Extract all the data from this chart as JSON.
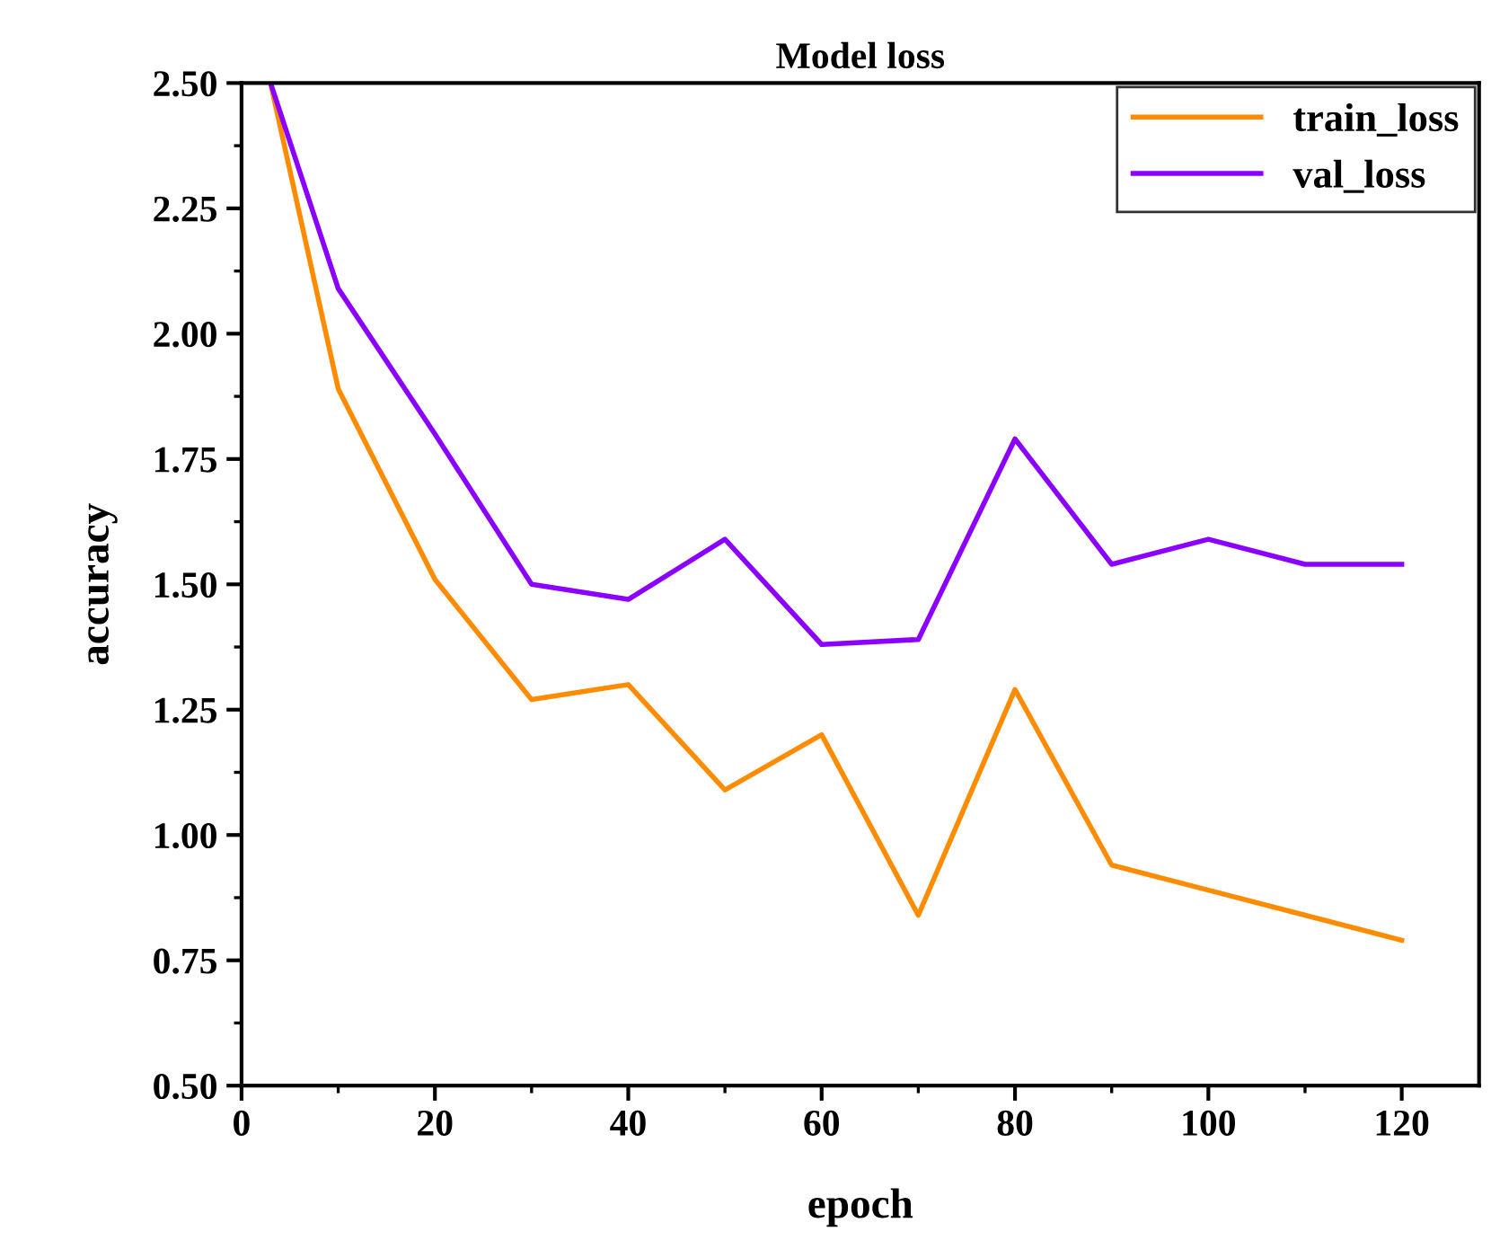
{
  "chart_data": {
    "type": "line",
    "title": "Model loss",
    "xlabel": "epoch",
    "ylabel": "accuracy",
    "x": [
      3,
      10,
      20,
      30,
      40,
      50,
      60,
      70,
      80,
      90,
      100,
      110,
      120
    ],
    "series": [
      {
        "name": "train_loss",
        "color": "#ff8c00",
        "values": [
          2.5,
          1.89,
          1.51,
          1.27,
          1.3,
          1.09,
          1.2,
          0.84,
          1.29,
          0.94,
          0.89,
          0.84,
          0.79
        ]
      },
      {
        "name": "val_loss",
        "color": "#8b00ff",
        "values": [
          2.5,
          2.09,
          1.8,
          1.5,
          1.47,
          1.59,
          1.38,
          1.39,
          1.79,
          1.54,
          1.59,
          1.54,
          1.54
        ]
      }
    ],
    "xlim": [
      0,
      128
    ],
    "xticks": [
      0,
      20,
      40,
      60,
      80,
      100,
      120
    ],
    "ylim": [
      0.5,
      2.5
    ],
    "yticks": [
      {
        "value": 0.5,
        "label": "0.50"
      },
      {
        "value": 0.75,
        "label": "0.75"
      },
      {
        "value": 1.0,
        "label": "1.00"
      },
      {
        "value": 1.25,
        "label": "1.25"
      },
      {
        "value": 1.5,
        "label": "1.50"
      },
      {
        "value": 1.75,
        "label": "1.75"
      },
      {
        "value": 2.0,
        "label": "2.00"
      },
      {
        "value": 2.25,
        "label": "2.25"
      },
      {
        "value": 2.5,
        "label": "2.50"
      }
    ],
    "grid": false,
    "legend": "top right",
    "marker": "none",
    "line_style": "solid"
  }
}
